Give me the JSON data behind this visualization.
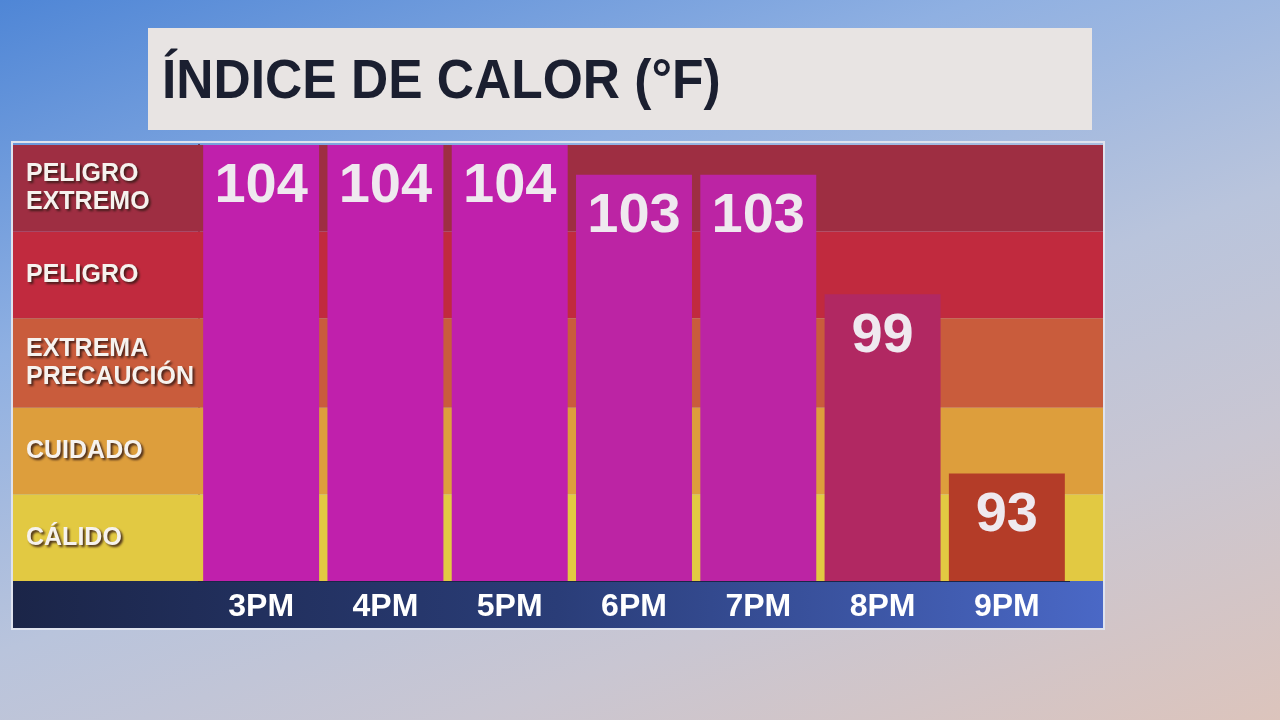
{
  "chart_data": {
    "type": "bar",
    "title": "ÍNDICE DE CALOR (°F)",
    "categories": [
      "3PM",
      "4PM",
      "5PM",
      "6PM",
      "7PM",
      "8PM",
      "9PM"
    ],
    "values": [
      104,
      104,
      104,
      103,
      103,
      99,
      93
    ],
    "colors": [
      "#c020ac",
      "#c020ac",
      "#c020ac",
      "#bc24a4",
      "#bc24a4",
      "#b12862",
      "#b43c28"
    ],
    "ylim": [
      89.4,
      104
    ],
    "data_labels": true,
    "tick_labels": "x",
    "bands": [
      {
        "axis": "y",
        "from": 101.1,
        "to": 104,
        "label": "PELIGRO EXTREMO",
        "color": "#9e2e42"
      },
      {
        "axis": "y",
        "from": 98.2,
        "to": 101.1,
        "label": "PELIGRO",
        "color": "#c12a3e"
      },
      {
        "axis": "y",
        "from": 95.2,
        "to": 98.2,
        "label": "EXTREMA PRECAUCIÓN",
        "color": "#c95c3c"
      },
      {
        "axis": "y",
        "from": 92.3,
        "to": 95.2,
        "label": "CUIDADO",
        "color": "#dd9e3c"
      },
      {
        "axis": "y",
        "from": 89.4,
        "to": 92.3,
        "label": "CÁLIDO",
        "color": "#e2c942"
      }
    ]
  }
}
